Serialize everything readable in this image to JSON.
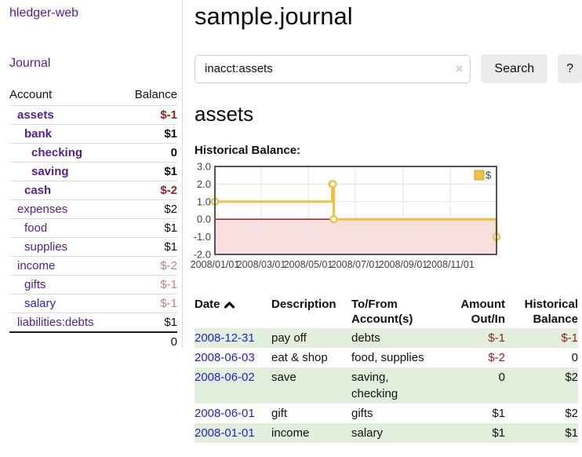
{
  "sidebar": {
    "app_title": "hledger-web",
    "nav": {
      "journal_label": "Journal"
    },
    "table": {
      "headers": [
        "Account",
        "Balance"
      ],
      "accounts": [
        {
          "name": "assets",
          "indent": 0,
          "bold": true,
          "balance": "$-1",
          "balance_class": "neg-strong",
          "link": "purple"
        },
        {
          "name": "bank",
          "indent": 1,
          "bold": true,
          "balance": "$1",
          "balance_class": "",
          "link": "purple"
        },
        {
          "name": "checking",
          "indent": 2,
          "bold": true,
          "balance": "0",
          "balance_class": "",
          "link": "purple"
        },
        {
          "name": "saving",
          "indent": 2,
          "bold": true,
          "balance": "$1",
          "balance_class": "",
          "link": "purple"
        },
        {
          "name": "cash",
          "indent": 1,
          "bold": true,
          "balance": "$-2",
          "balance_class": "neg-strong",
          "link": "purple"
        },
        {
          "name": "expenses",
          "indent": 0,
          "bold": false,
          "balance": "$2",
          "balance_class": "",
          "link": "purple"
        },
        {
          "name": "food",
          "indent": 1,
          "bold": false,
          "balance": "$1",
          "balance_class": "",
          "link": "purple"
        },
        {
          "name": "supplies",
          "indent": 1,
          "bold": false,
          "balance": "$1",
          "balance_class": "",
          "link": "purple"
        },
        {
          "name": "income",
          "indent": 0,
          "bold": false,
          "balance": "$-2",
          "balance_class": "neg-soft",
          "link": "purple"
        },
        {
          "name": "gifts",
          "indent": 1,
          "bold": false,
          "balance": "$-1",
          "balance_class": "neg-soft",
          "link": "purple"
        },
        {
          "name": "salary",
          "indent": 1,
          "bold": false,
          "balance": "$-1",
          "balance_class": "neg-soft",
          "link": "blue"
        },
        {
          "name": "liabilities:debts",
          "indent": 0,
          "bold": false,
          "balance": "$1",
          "balance_class": "",
          "link": "purple"
        }
      ],
      "total": "0"
    }
  },
  "header": {
    "title": "sample.journal"
  },
  "search": {
    "query": "inacct:assets",
    "clear_icon": "×",
    "button_label": "Search",
    "help_label": "?"
  },
  "account_page": {
    "heading": "assets",
    "chart_label": "Historical Balance:"
  },
  "chart_data": {
    "type": "line",
    "mode": "step",
    "title": "Historical Balance",
    "series": [
      {
        "name": "$",
        "color": "#e8c344",
        "points": [
          [
            "2008-01-01",
            1
          ],
          [
            "2008-06-01",
            2
          ],
          [
            "2008-06-02",
            2
          ],
          [
            "2008-06-03",
            0
          ],
          [
            "2008-12-31",
            -1
          ]
        ]
      }
    ],
    "x_range": [
      "2008-01-01",
      "2008-12-31"
    ],
    "x_ticks": [
      {
        "date": "2008-01-01",
        "label": "2008/01/01"
      },
      {
        "date": "2008-03-01",
        "label": "2008/03/01"
      },
      {
        "date": "2008-05-01",
        "label": "2008/05/01"
      },
      {
        "date": "2008-07-01",
        "label": "2008/07/01"
      },
      {
        "date": "2008-09-01",
        "label": "2008/09/01"
      },
      {
        "date": "2008-11-01",
        "label": "2008/11/01"
      }
    ],
    "y_ticks": [
      {
        "v": 3,
        "label": "3.0"
      },
      {
        "v": 2,
        "label": "2.0"
      },
      {
        "v": 1,
        "label": "1.0"
      },
      {
        "v": 0,
        "label": "0.0"
      },
      {
        "v": -1,
        "label": "-1.0"
      },
      {
        "v": -2,
        "label": "-2.0"
      }
    ],
    "ylim": [
      -2,
      3
    ],
    "grid": true,
    "legend": {
      "label": "$",
      "position": "top-right"
    },
    "negative_region": {
      "fill": "#f9dede",
      "zero_line_color": "#8c0d0d"
    }
  },
  "register": {
    "headers": [
      "Date",
      "Description",
      "To/From Account(s)",
      "Amount Out/In",
      "Historical Balance"
    ],
    "sort": {
      "column": "Date",
      "icon": "chevron-up"
    },
    "rows": [
      {
        "date": "2008-12-31",
        "description": "pay off",
        "accounts": "debts",
        "amount": "$-1",
        "amount_neg": true,
        "balance": "$-1",
        "balance_neg": true
      },
      {
        "date": "2008-06-03",
        "description": "eat & shop",
        "accounts": "food, supplies",
        "amount": "$-2",
        "amount_neg": true,
        "balance": "0",
        "balance_neg": false
      },
      {
        "date": "2008-06-02",
        "description": "save",
        "accounts": "saving, checking",
        "amount": "0",
        "amount_neg": false,
        "balance": "$2",
        "balance_neg": false
      },
      {
        "date": "2008-06-01",
        "description": "gift",
        "accounts": "gifts",
        "amount": "$1",
        "amount_neg": false,
        "balance": "$2",
        "balance_neg": false
      },
      {
        "date": "2008-01-01",
        "description": "income",
        "accounts": "salary",
        "amount": "$1",
        "amount_neg": false,
        "balance": "$1",
        "balance_neg": false
      }
    ]
  },
  "colors": {
    "link_purple": "#571c97",
    "link_blue": "#2323d2",
    "negative_strong": "#941f1f",
    "negative_soft": "#c17f7f",
    "table_negative": "#9d1c1c",
    "row_stripe_green": "#e1efdc",
    "chart_line_yellow": "#e8c344",
    "legend_swatch": "#edc240",
    "plot_border": "#545454",
    "grid_line": "#e4e4e4",
    "zero_line": "#8c0d0d",
    "negative_fill": "#f9dede",
    "button_bg": "#ececec"
  }
}
